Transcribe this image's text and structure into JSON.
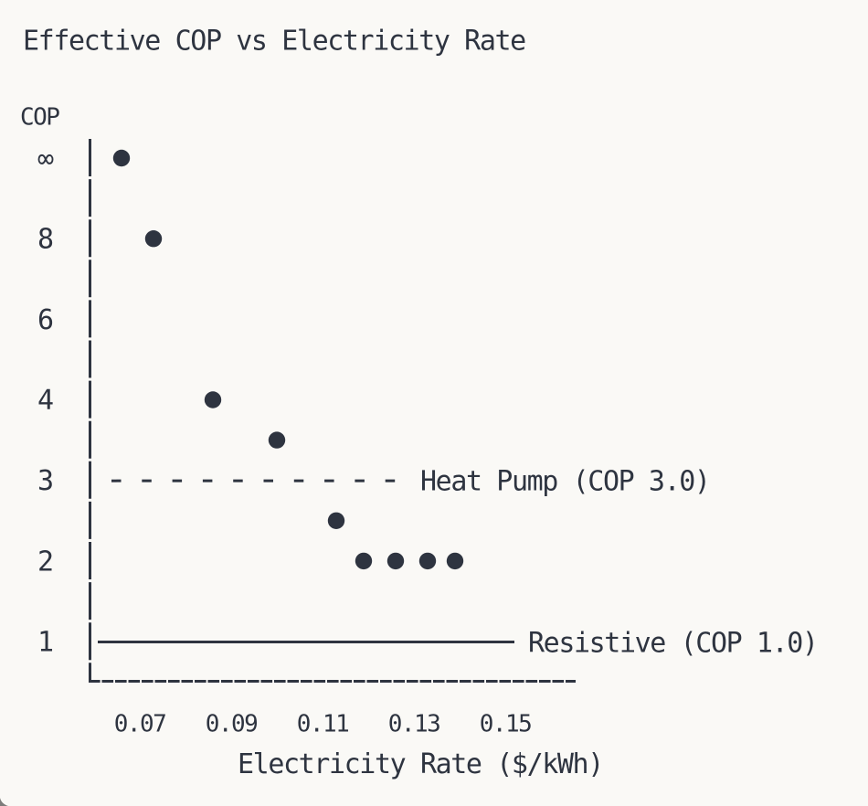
{
  "theme": {
    "background": "#faf9f6",
    "ink": "#2e3440"
  },
  "chart_data": {
    "type": "scatter",
    "title": "Effective COP vs Electricity Rate",
    "ylabel": "COP",
    "xlabel": "Electricity Rate ($/kWh)",
    "x_tick_labels": [
      "0.07",
      "0.09",
      "0.11",
      "0.13",
      "0.15"
    ],
    "x_tick_values": [
      0.07,
      0.09,
      0.11,
      0.13,
      0.15
    ],
    "y_tick_labels": [
      "∞",
      "8",
      "6",
      "4",
      "3",
      "2",
      "1"
    ],
    "y_scale_note": "nonlinear: tick values evenly spaced from top (∞) to bottom (1)",
    "grid": false,
    "points": [
      {
        "x": 0.066,
        "y": "∞"
      },
      {
        "x": 0.073,
        "y": 8
      },
      {
        "x": 0.086,
        "y": 4
      },
      {
        "x": 0.1,
        "y": 3.5
      },
      {
        "x": 0.113,
        "y": 2.5
      },
      {
        "x": 0.119,
        "y": 2
      },
      {
        "x": 0.126,
        "y": 2
      },
      {
        "x": 0.133,
        "y": 2
      },
      {
        "x": 0.139,
        "y": 2
      }
    ],
    "reference_lines": [
      {
        "y": 3.0,
        "style": "dashed",
        "label": "Heat Pump (COP 3.0)"
      },
      {
        "y": 1.0,
        "style": "solid",
        "label": "Resistive (COP 1.0)"
      }
    ],
    "legend_position": "labels inline, right of reference lines"
  }
}
